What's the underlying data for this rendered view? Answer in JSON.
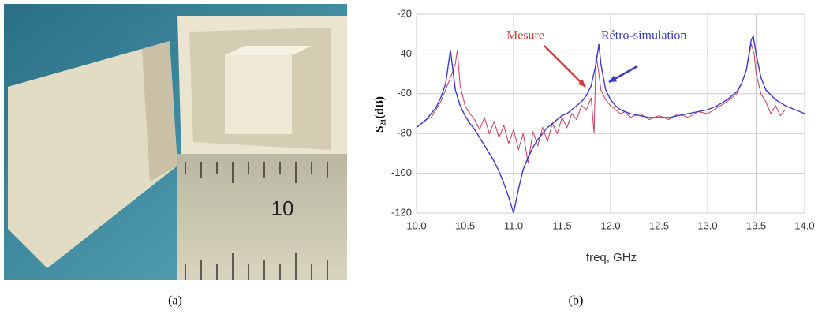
{
  "figure": {
    "panel_a": {
      "caption": "(a)",
      "ruler_label": "10"
    },
    "panel_b": {
      "caption": "(b)"
    }
  },
  "chart_data": {
    "type": "line",
    "xlabel": "freq, GHz",
    "ylabel": "S₂₁(dB)",
    "xlim": [
      10,
      14
    ],
    "ylim": [
      -120,
      -20
    ],
    "xticks": [
      {
        "value": 10,
        "label": "10.0"
      },
      10.5,
      {
        "value": 11,
        "label": "11.0"
      },
      11.5,
      {
        "value": 12,
        "label": "12.0"
      },
      12.5,
      {
        "value": 13,
        "label": "13.0"
      },
      13.5,
      {
        "value": 14,
        "label": "14.0"
      }
    ],
    "yticks": [
      -20,
      -40,
      -60,
      -80,
      -100,
      -120
    ],
    "grid": true,
    "annotations": [
      {
        "text": "Mesure",
        "color": "#d23a3a"
      },
      {
        "text": "Rétro-simulation",
        "color": "#3a3ac0"
      }
    ],
    "series": [
      {
        "name": "Mesure",
        "color": "#c83a5a",
        "x": [
          10.0,
          10.05,
          10.1,
          10.15,
          10.2,
          10.25,
          10.3,
          10.35,
          10.4,
          10.42,
          10.45,
          10.5,
          10.55,
          10.6,
          10.65,
          10.7,
          10.75,
          10.8,
          10.85,
          10.9,
          10.95,
          11.0,
          11.05,
          11.1,
          11.15,
          11.2,
          11.25,
          11.3,
          11.35,
          11.4,
          11.45,
          11.5,
          11.55,
          11.6,
          11.65,
          11.7,
          11.75,
          11.8,
          11.83,
          11.85,
          11.88,
          11.9,
          11.95,
          12.0,
          12.05,
          12.1,
          12.15,
          12.2,
          12.3,
          12.4,
          12.5,
          12.6,
          12.7,
          12.8,
          12.9,
          13.0,
          13.1,
          13.2,
          13.3,
          13.35,
          13.4,
          13.45,
          13.48,
          13.5,
          13.55,
          13.6,
          13.65,
          13.7,
          13.75,
          13.8
        ],
        "values": [
          -77,
          -75,
          -73,
          -72,
          -68,
          -64,
          -58,
          -52,
          -45,
          -38,
          -56,
          -66,
          -70,
          -73,
          -78,
          -72,
          -80,
          -74,
          -82,
          -76,
          -85,
          -78,
          -88,
          -80,
          -95,
          -79,
          -86,
          -77,
          -84,
          -75,
          -80,
          -72,
          -77,
          -70,
          -73,
          -66,
          -68,
          -62,
          -80,
          -40,
          -50,
          -58,
          -63,
          -66,
          -68,
          -70,
          -69,
          -72,
          -70,
          -73,
          -71,
          -73,
          -70,
          -72,
          -69,
          -70,
          -67,
          -64,
          -60,
          -55,
          -48,
          -35,
          -40,
          -50,
          -60,
          -64,
          -70,
          -66,
          -71,
          -68
        ]
      },
      {
        "name": "Rétro-simulation",
        "color": "#3a3ac8",
        "x": [
          10.0,
          10.05,
          10.1,
          10.15,
          10.2,
          10.25,
          10.3,
          10.35,
          10.4,
          10.45,
          10.5,
          10.55,
          10.6,
          10.65,
          10.7,
          10.75,
          10.8,
          10.85,
          10.9,
          10.95,
          11.0,
          11.05,
          11.1,
          11.15,
          11.2,
          11.25,
          11.3,
          11.35,
          11.4,
          11.45,
          11.5,
          11.55,
          11.6,
          11.65,
          11.7,
          11.75,
          11.8,
          11.85,
          11.88,
          11.9,
          11.95,
          12.0,
          12.05,
          12.1,
          12.15,
          12.2,
          12.3,
          12.4,
          12.5,
          12.6,
          12.7,
          12.8,
          12.9,
          13.0,
          13.1,
          13.2,
          13.3,
          13.35,
          13.4,
          13.45,
          13.47,
          13.5,
          13.55,
          13.6,
          13.7,
          13.8,
          13.9,
          14.0
        ],
        "values": [
          -77,
          -75,
          -73,
          -70,
          -67,
          -62,
          -55,
          -38,
          -58,
          -66,
          -71,
          -75,
          -78,
          -82,
          -86,
          -90,
          -94,
          -99,
          -105,
          -112,
          -120,
          -108,
          -98,
          -92,
          -87,
          -83,
          -80,
          -77,
          -75,
          -73,
          -71,
          -70,
          -68,
          -66,
          -64,
          -61,
          -56,
          -45,
          -35,
          -45,
          -58,
          -63,
          -66,
          -68,
          -69,
          -70,
          -71,
          -72,
          -72,
          -72,
          -71,
          -70,
          -69,
          -68,
          -66,
          -63,
          -59,
          -55,
          -48,
          -33,
          -31,
          -40,
          -52,
          -58,
          -63,
          -66,
          -68,
          -70
        ]
      }
    ]
  }
}
